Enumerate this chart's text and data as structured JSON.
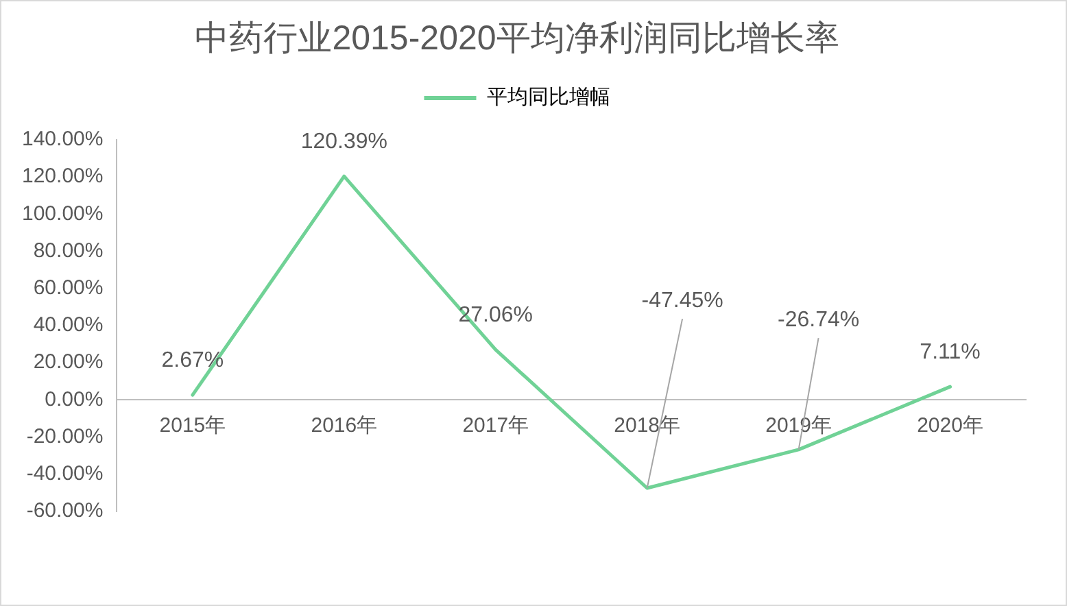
{
  "chart_data": {
    "type": "line",
    "title": "中药行业2015-2020平均净利润同比增长率",
    "categories": [
      "2015年",
      "2016年",
      "2017年",
      "2018年",
      "2019年",
      "2020年"
    ],
    "series": [
      {
        "name": "平均同比增幅",
        "color": "#70d296",
        "values": [
          2.67,
          120.39,
          27.06,
          -47.45,
          -26.74,
          7.11
        ],
        "value_labels": [
          "2.67%",
          "120.39%",
          "27.06%",
          "-47.45%",
          "-26.74%",
          "7.11%"
        ]
      }
    ],
    "ylim": [
      -60,
      140
    ],
    "yticks": [
      {
        "value": -60,
        "label": "-60.00%"
      },
      {
        "value": -40,
        "label": "-40.00%"
      },
      {
        "value": -20,
        "label": "-20.00%"
      },
      {
        "value": 0,
        "label": "0.00%"
      },
      {
        "value": 20,
        "label": "20.00%"
      },
      {
        "value": 40,
        "label": "40.00%"
      },
      {
        "value": 60,
        "label": "60.00%"
      },
      {
        "value": 80,
        "label": "80.00%"
      },
      {
        "value": 100,
        "label": "100.00%"
      },
      {
        "value": 120,
        "label": "120.00%"
      },
      {
        "value": 140,
        "label": "140.00%"
      }
    ],
    "legend": "top",
    "marker": "none",
    "line_style": "solid"
  }
}
